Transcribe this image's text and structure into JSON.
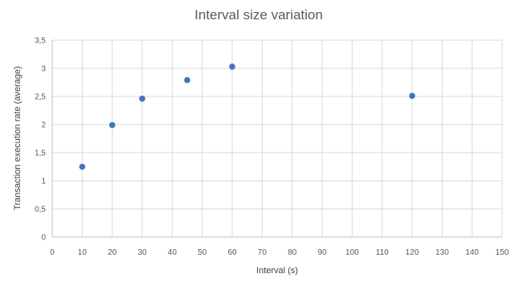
{
  "chart_data": {
    "type": "scatter",
    "title": "Interval size variation",
    "xlabel": "Interval (s)",
    "ylabel": "Transaction execution rate (average)",
    "xlim": [
      0,
      150
    ],
    "ylim": [
      0,
      3.5
    ],
    "x_ticks": [
      "0",
      "10",
      "20",
      "30",
      "40",
      "50",
      "60",
      "70",
      "80",
      "90",
      "100",
      "110",
      "120",
      "130",
      "140",
      "150"
    ],
    "y_ticks": [
      "0",
      "0,5",
      "1",
      "1,5",
      "2",
      "2,5",
      "3",
      "3,5"
    ],
    "grid": true,
    "legend": "none",
    "marker_color": "#4472c4",
    "series": [
      {
        "points": [
          {
            "x": 10,
            "y": 1.25
          },
          {
            "x": 20,
            "y": 1.99
          },
          {
            "x": 30,
            "y": 2.46
          },
          {
            "x": 45,
            "y": 2.79
          },
          {
            "x": 60,
            "y": 3.03
          },
          {
            "x": 120,
            "y": 2.51
          }
        ]
      }
    ]
  }
}
